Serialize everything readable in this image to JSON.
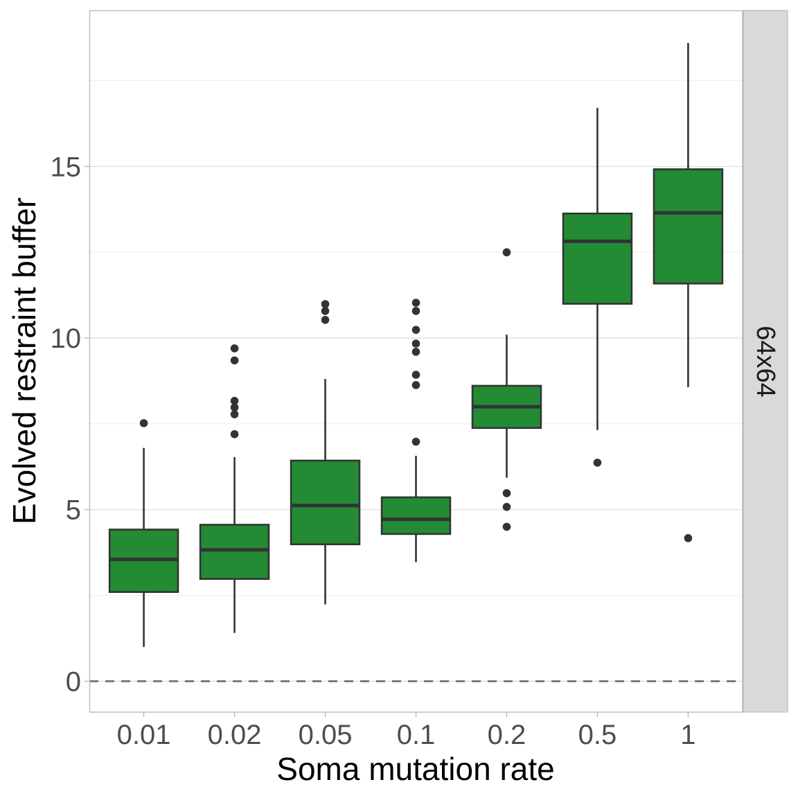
{
  "chart_data": {
    "type": "boxplot",
    "title": "",
    "xlabel": "Soma mutation rate",
    "ylabel": "Evolved restraint buffer",
    "facet_label": "64x64",
    "categories": [
      "0.01",
      "0.02",
      "0.05",
      "0.1",
      "0.2",
      "0.5",
      "1"
    ],
    "ylim": [
      -0.9,
      19.55
    ],
    "yticks": [
      0,
      5,
      10,
      15
    ],
    "ytick_labels": [
      "0",
      "5",
      "10",
      "15"
    ],
    "minor_gridlines": [
      2.5,
      7.5,
      12.5,
      17.5
    ],
    "reference_line": {
      "y": 0,
      "style": "dashed"
    },
    "grid": true,
    "fill_color": "#228B34",
    "line_color": "#333333",
    "boxes": [
      {
        "category": "0.01",
        "lower_whisker": 1.0,
        "q1": 2.6,
        "median": 3.55,
        "q3": 4.42,
        "upper_whisker": 6.8,
        "outliers": [
          7.52
        ]
      },
      {
        "category": "0.02",
        "lower_whisker": 1.41,
        "q1": 2.98,
        "median": 3.83,
        "q3": 4.56,
        "upper_whisker": 6.53,
        "outliers": [
          7.2,
          7.78,
          7.98,
          8.17,
          9.35,
          9.7
        ]
      },
      {
        "category": "0.05",
        "lower_whisker": 2.24,
        "q1": 3.99,
        "median": 5.12,
        "q3": 6.43,
        "upper_whisker": 8.81,
        "outliers": [
          10.53,
          10.79,
          10.99
        ]
      },
      {
        "category": "0.1",
        "lower_whisker": 3.47,
        "q1": 4.29,
        "median": 4.72,
        "q3": 5.36,
        "upper_whisker": 6.57,
        "outliers": [
          6.98,
          8.63,
          8.93,
          9.6,
          9.84,
          10.24,
          10.79,
          11.03
        ]
      },
      {
        "category": "0.2",
        "lower_whisker": 5.93,
        "q1": 7.38,
        "median": 8.0,
        "q3": 8.61,
        "upper_whisker": 10.1,
        "outliers": [
          4.5,
          5.08,
          5.48,
          12.5
        ]
      },
      {
        "category": "0.5",
        "lower_whisker": 7.32,
        "q1": 11.0,
        "median": 12.82,
        "q3": 13.63,
        "upper_whisker": 16.71,
        "outliers": [
          6.37
        ]
      },
      {
        "category": "1",
        "lower_whisker": 8.57,
        "q1": 11.59,
        "median": 13.65,
        "q3": 14.92,
        "upper_whisker": 18.6,
        "outliers": [
          4.17
        ]
      }
    ]
  }
}
